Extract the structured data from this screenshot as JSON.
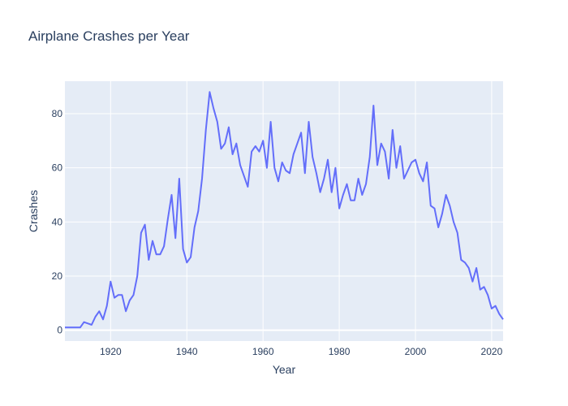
{
  "chart_data": {
    "type": "line",
    "title": "Airplane Crashes per Year",
    "xlabel": "Year",
    "ylabel": "Crashes",
    "xlim": [
      1908,
      2023
    ],
    "ylim": [
      -4,
      92
    ],
    "x_ticks": [
      1920,
      1940,
      1960,
      1980,
      2000,
      2020
    ],
    "y_ticks": [
      0,
      20,
      40,
      60,
      80
    ],
    "grid": true,
    "series": [
      {
        "color": "#636efa",
        "x": [
          1908,
          1909,
          1910,
          1911,
          1912,
          1913,
          1914,
          1915,
          1916,
          1917,
          1918,
          1919,
          1920,
          1921,
          1922,
          1923,
          1924,
          1925,
          1926,
          1927,
          1928,
          1929,
          1930,
          1931,
          1932,
          1933,
          1934,
          1935,
          1936,
          1937,
          1938,
          1939,
          1940,
          1941,
          1942,
          1943,
          1944,
          1945,
          1946,
          1947,
          1948,
          1949,
          1950,
          1951,
          1952,
          1953,
          1954,
          1955,
          1956,
          1957,
          1958,
          1959,
          1960,
          1961,
          1962,
          1963,
          1964,
          1965,
          1966,
          1967,
          1968,
          1969,
          1970,
          1971,
          1972,
          1973,
          1974,
          1975,
          1976,
          1977,
          1978,
          1979,
          1980,
          1981,
          1982,
          1983,
          1984,
          1985,
          1986,
          1987,
          1988,
          1989,
          1990,
          1991,
          1992,
          1993,
          1994,
          1995,
          1996,
          1997,
          1998,
          1999,
          2000,
          2001,
          2002,
          2003,
          2004,
          2005,
          2006,
          2007,
          2008,
          2009,
          2010,
          2011,
          2012,
          2013,
          2014,
          2015,
          2016,
          2017,
          2018,
          2019,
          2020,
          2021,
          2022,
          2023
        ],
        "y": [
          1,
          1,
          1,
          1,
          1,
          3,
          2.5,
          2,
          5,
          7,
          4,
          9,
          18,
          12,
          13,
          13,
          7,
          11,
          13,
          20,
          36,
          39,
          26,
          33,
          28,
          28,
          31,
          41,
          50,
          34,
          56,
          30,
          25,
          27,
          38,
          44,
          56,
          74,
          88,
          82,
          77,
          67,
          69,
          75,
          65,
          69,
          61,
          57,
          53,
          66,
          68,
          66,
          70,
          60,
          77,
          60,
          55,
          62,
          59,
          58,
          65,
          69,
          73,
          58,
          77,
          64,
          58,
          51,
          56,
          63,
          51,
          60,
          45,
          50,
          54,
          48,
          48,
          56,
          50,
          54,
          64,
          83,
          61,
          69,
          66,
          56,
          74,
          60,
          68,
          56,
          59,
          62,
          63,
          58,
          55,
          62,
          46,
          45,
          38,
          43,
          50,
          46,
          40,
          36,
          26,
          25,
          23,
          18,
          23,
          15,
          16,
          13,
          8,
          9,
          6,
          4
        ]
      }
    ]
  }
}
